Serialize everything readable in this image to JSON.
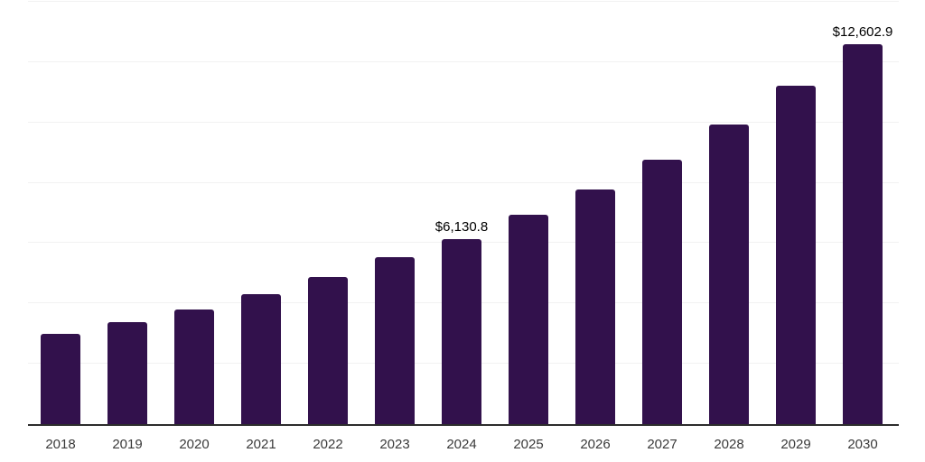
{
  "colors": {
    "bar": "#32114c",
    "axis_line": "#2d2d2d",
    "gridline": "#f2f2f2",
    "data_label_text": "#000000",
    "tick_text": "#3a3a3a",
    "background": "#ffffff"
  },
  "chart_data": {
    "type": "bar",
    "title": "",
    "xlabel": "",
    "ylabel": "",
    "categories": [
      "2018",
      "2019",
      "2020",
      "2021",
      "2022",
      "2023",
      "2024",
      "2025",
      "2026",
      "2027",
      "2028",
      "2029",
      "2030"
    ],
    "values": [
      2980,
      3390,
      3790,
      4310,
      4875,
      5530,
      6130.8,
      6950,
      7785,
      8780,
      9920,
      11210,
      12602.9
    ],
    "data_labels": [
      "",
      "",
      "",
      "",
      "",
      "",
      "$6,130.8",
      "",
      "",
      "",
      "",
      "",
      "$12,602.9"
    ],
    "ylim": [
      0,
      14000
    ],
    "gridline_step": 2000,
    "grid": "horizontal",
    "legend_position": "none",
    "bar_corner_radius_px": 3
  }
}
